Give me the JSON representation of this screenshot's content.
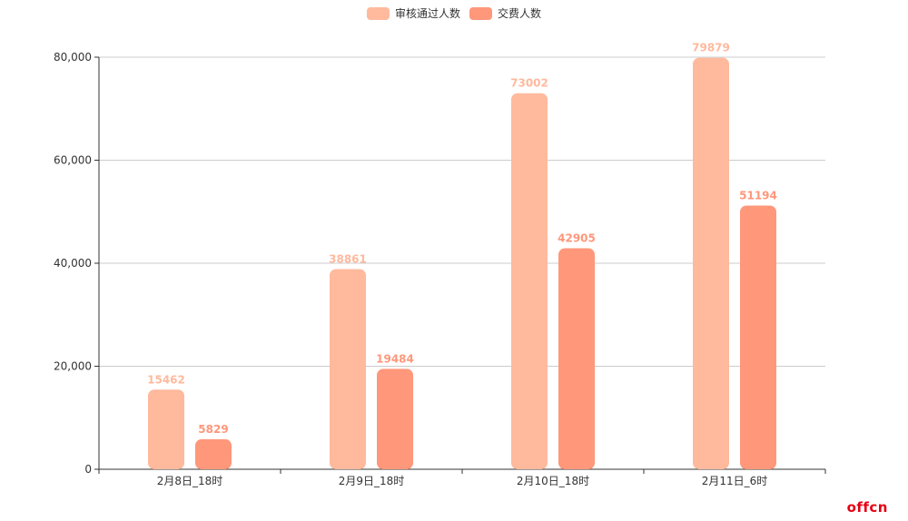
{
  "chart_data": {
    "type": "bar",
    "categories": [
      "2月8日_18时",
      "2月9日_18时",
      "2月10日_18时",
      "2月11日_6时"
    ],
    "series": [
      {
        "name": "审核通过人数",
        "values": [
          15462,
          38861,
          73002,
          79879
        ],
        "color": "#FFB99D"
      },
      {
        "name": "交费人数",
        "values": [
          5829,
          19484,
          42905,
          51194
        ],
        "color": "#FF977A"
      }
    ],
    "yticks": [
      "0",
      "20,000",
      "40,000",
      "60,000",
      "80,000"
    ],
    "ylim": [
      0,
      80000
    ],
    "grid": true,
    "legend": "top-center"
  },
  "watermark": "offcn"
}
